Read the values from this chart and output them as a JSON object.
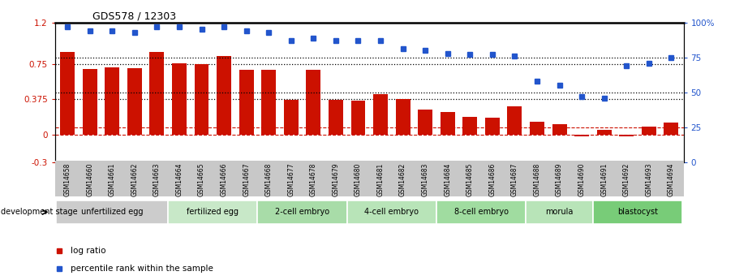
{
  "title": "GDS578 / 12303",
  "samples": [
    "GSM14658",
    "GSM14660",
    "GSM14661",
    "GSM14662",
    "GSM14663",
    "GSM14664",
    "GSM14665",
    "GSM14666",
    "GSM14667",
    "GSM14668",
    "GSM14677",
    "GSM14678",
    "GSM14679",
    "GSM14680",
    "GSM14681",
    "GSM14682",
    "GSM14683",
    "GSM14684",
    "GSM14685",
    "GSM14686",
    "GSM14687",
    "GSM14688",
    "GSM14689",
    "GSM14690",
    "GSM14691",
    "GSM14692",
    "GSM14693",
    "GSM14694"
  ],
  "log_ratio": [
    0.88,
    0.7,
    0.72,
    0.71,
    0.88,
    0.76,
    0.75,
    0.84,
    0.69,
    0.69,
    0.37,
    0.69,
    0.37,
    0.36,
    0.43,
    0.38,
    0.27,
    0.24,
    0.19,
    0.18,
    0.3,
    0.14,
    0.11,
    -0.02,
    0.05,
    -0.02,
    0.08,
    0.13
  ],
  "percentile": [
    97,
    94,
    94,
    93,
    97,
    97,
    95,
    97,
    94,
    93,
    87,
    89,
    87,
    87,
    87,
    81,
    80,
    78,
    77,
    77,
    76,
    58,
    55,
    47,
    46,
    69,
    71,
    75
  ],
  "stages": [
    {
      "label": "unfertilized egg",
      "start": 0,
      "end": 5
    },
    {
      "label": "fertilized egg",
      "start": 5,
      "end": 9
    },
    {
      "label": "2-cell embryo",
      "start": 9,
      "end": 13
    },
    {
      "label": "4-cell embryo",
      "start": 13,
      "end": 17
    },
    {
      "label": "8-cell embryo",
      "start": 17,
      "end": 21
    },
    {
      "label": "morula",
      "start": 21,
      "end": 24
    },
    {
      "label": "blastocyst",
      "start": 24,
      "end": 28
    }
  ],
  "stage_colors": [
    "#cccccc",
    "#c8e8c8",
    "#a8dca8",
    "#b8e4b8",
    "#a0dca0",
    "#b8e4b8",
    "#78cc78"
  ],
  "bar_color": "#cc1100",
  "dot_color": "#2255cc",
  "ylim_left": [
    -0.3,
    1.2
  ],
  "ylim_right": [
    0,
    100
  ],
  "yticks_left": [
    -0.3,
    0,
    0.375,
    0.75,
    1.2
  ],
  "ytick_labels_left": [
    "-0.3",
    "0",
    "0.375",
    "0.75",
    "1.2"
  ],
  "yticks_right": [
    0,
    25,
    50,
    75,
    100
  ],
  "ytick_labels_right": [
    "0",
    "25",
    "50",
    "75",
    "100%"
  ]
}
